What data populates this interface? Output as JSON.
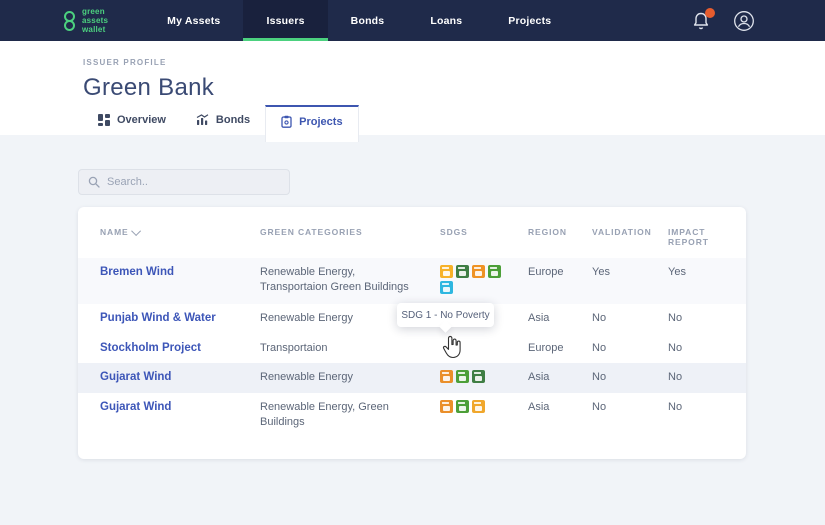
{
  "nav": {
    "logo_lines": [
      "green",
      "assets",
      "wallet"
    ],
    "brand_color": "#4cd17f",
    "items": [
      {
        "label": "My Assets",
        "active": false
      },
      {
        "label": "Issuers",
        "active": true
      },
      {
        "label": "Bonds",
        "active": false
      },
      {
        "label": "Loans",
        "active": false
      },
      {
        "label": "Projects",
        "active": false
      }
    ],
    "notification_dot_color": "#e65c2e"
  },
  "header": {
    "eyebrow": "ISSUER PROFILE",
    "title": "Green Bank"
  },
  "tabs": [
    {
      "label": "Overview",
      "icon": "grid-icon",
      "active": false
    },
    {
      "label": "Bonds",
      "icon": "chart-icon",
      "active": false
    },
    {
      "label": "Projects",
      "icon": "clipboard-icon",
      "active": true
    }
  ],
  "search": {
    "placeholder": "Search.."
  },
  "table": {
    "columns": [
      "NAME",
      "GREEN CATEGORIES",
      "SDGS",
      "REGION",
      "VALIDATION",
      "IMPACT REPORT"
    ],
    "sorted_column": "NAME",
    "rows": [
      {
        "name": "Bremen Wind",
        "categories": "Renewable Energy, Transportaion Green Buildings",
        "sdgs": [
          {
            "name": "sdg-clean-energy",
            "color": "#f7b229"
          },
          {
            "name": "sdg-climate-action",
            "color": "#3f7e44"
          },
          {
            "name": "sdg-sustainable-cities",
            "color": "#ef9325"
          },
          {
            "name": "sdg-life-on-land",
            "color": "#4c9f38"
          },
          {
            "name": "sdg-clean-water",
            "color": "#2fb7e0"
          }
        ],
        "region": "Europe",
        "validation": "Yes",
        "impact_report": "Yes",
        "shaded": true,
        "highlighted": false
      },
      {
        "name": "Punjab Wind & Water",
        "categories": "Renewable Energy",
        "sdgs": [
          {
            "name": "sdg-sustainable-cities",
            "color": "#ef9325"
          },
          {
            "name": "sdg-life-on-land",
            "color": "#4c9f38"
          }
        ],
        "region": "Asia",
        "validation": "No",
        "impact_report": "No",
        "shaded": false,
        "highlighted": false
      },
      {
        "name": "Stockholm Project",
        "categories": "Transportaion",
        "sdgs": [],
        "region": "Europe",
        "validation": "No",
        "impact_report": "No",
        "shaded": false,
        "highlighted": false
      },
      {
        "name": "Gujarat Wind",
        "categories": "Renewable Energy",
        "sdgs": [
          {
            "name": "sdg-no-poverty",
            "color": "#ea8f2a"
          },
          {
            "name": "sdg-life-on-land",
            "color": "#4c9f38"
          },
          {
            "name": "sdg-climate-action",
            "color": "#3f7e44"
          }
        ],
        "region": "Asia",
        "validation": "No",
        "impact_report": "No",
        "shaded": false,
        "highlighted": true
      },
      {
        "name": "Gujarat Wind",
        "categories": "Renewable Energy, Green Buildings",
        "sdgs": [
          {
            "name": "sdg-no-poverty",
            "color": "#ea8f2a"
          },
          {
            "name": "sdg-life-on-land",
            "color": "#4c9f38"
          },
          {
            "name": "sdg-clean-energy",
            "color": "#f0a72c"
          }
        ],
        "region": "Asia",
        "validation": "No",
        "impact_report": "No",
        "shaded": false,
        "highlighted": false
      }
    ]
  },
  "tooltip": {
    "text": "SDG 1 - No Poverty"
  },
  "colors": {
    "navbar_bg": "#1f2a4a",
    "nav_active_bg": "#19213d",
    "accent_green": "#4cd17f",
    "link_blue": "#3d56b8",
    "tab_active_blue": "#3d56b0",
    "page_bg": "#f1f4f8",
    "row_shaded": "#f8f9fc",
    "row_highlight": "#eef1f7"
  }
}
